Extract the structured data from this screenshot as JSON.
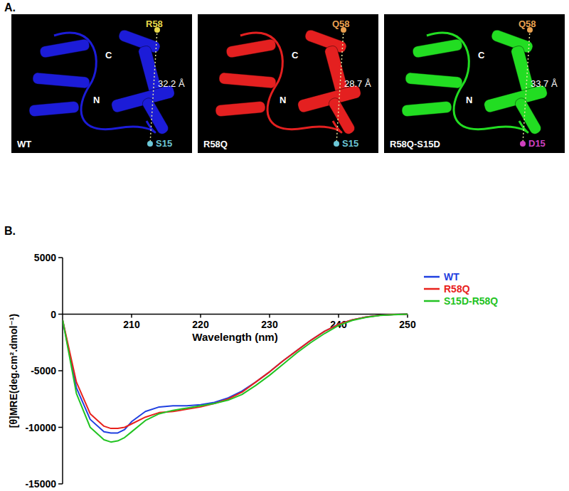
{
  "panel_labels": [
    "A.",
    "B."
  ],
  "structures": [
    {
      "name": "WT",
      "color": "#1c1cd8",
      "residue_top": {
        "label": "R58",
        "color": "#e8d84a"
      },
      "residue_bottom": {
        "label": "S15",
        "color": "#6cc8d8"
      },
      "distance": "32.2 Å",
      "c_label": "C",
      "n_label": "N"
    },
    {
      "name": "R58Q",
      "color": "#e42020",
      "residue_top": {
        "label": "Q58",
        "color": "#e8a050"
      },
      "residue_bottom": {
        "label": "S15",
        "color": "#6cc8d8"
      },
      "distance": "28.7 Å",
      "c_label": "C",
      "n_label": "N"
    },
    {
      "name": "R58Q-S15D",
      "color": "#22dd22",
      "residue_top": {
        "label": "Q58",
        "color": "#e8a050"
      },
      "residue_bottom": {
        "label": "D15",
        "color": "#d040c0"
      },
      "distance": "33.7 Å",
      "c_label": "C",
      "n_label": "N"
    }
  ],
  "chart_data": {
    "type": "line",
    "x_label": "Wavelength (nm)",
    "y_label": "[θ]MRE(deg.cm².dmol⁻¹)",
    "x": [
      200,
      202,
      204,
      206,
      207,
      208,
      209,
      210,
      212,
      214,
      216,
      218,
      220,
      222,
      224,
      226,
      228,
      230,
      232,
      234,
      236,
      238,
      240,
      242,
      244,
      246,
      248,
      250
    ],
    "series": [
      {
        "name": "WT",
        "color": "#1f3fe0",
        "values": [
          -500,
          -6500,
          -9300,
          -10400,
          -10500,
          -10500,
          -10200,
          -9500,
          -8600,
          -8200,
          -8100,
          -8100,
          -8000,
          -7800,
          -7400,
          -6800,
          -6000,
          -5100,
          -4100,
          -3200,
          -2300,
          -1500,
          -900,
          -500,
          -250,
          -100,
          -30,
          0
        ]
      },
      {
        "name": "R58Q",
        "color": "#e8211b",
        "values": [
          -500,
          -6000,
          -8800,
          -9900,
          -10100,
          -10100,
          -10000,
          -9700,
          -9100,
          -8700,
          -8600,
          -8400,
          -8200,
          -7900,
          -7500,
          -6900,
          -6000,
          -5100,
          -4100,
          -3200,
          -2300,
          -1500,
          -900,
          -500,
          -250,
          -100,
          -30,
          0
        ]
      },
      {
        "name": "S15D-R58Q",
        "color": "#22c322",
        "values": [
          -500,
          -7000,
          -10000,
          -11100,
          -11300,
          -11200,
          -10900,
          -10400,
          -9400,
          -8800,
          -8500,
          -8300,
          -8100,
          -7900,
          -7600,
          -7100,
          -6300,
          -5400,
          -4400,
          -3400,
          -2500,
          -1700,
          -1000,
          -550,
          -280,
          -110,
          -40,
          0
        ]
      }
    ],
    "xlim": [
      200,
      250
    ],
    "xticks": [
      210,
      220,
      230,
      240,
      250
    ],
    "ylim": [
      -15000,
      5000
    ],
    "yticks": [
      5000,
      0,
      -5000,
      -10000,
      -15000
    ],
    "grid": false,
    "legend": "right"
  }
}
